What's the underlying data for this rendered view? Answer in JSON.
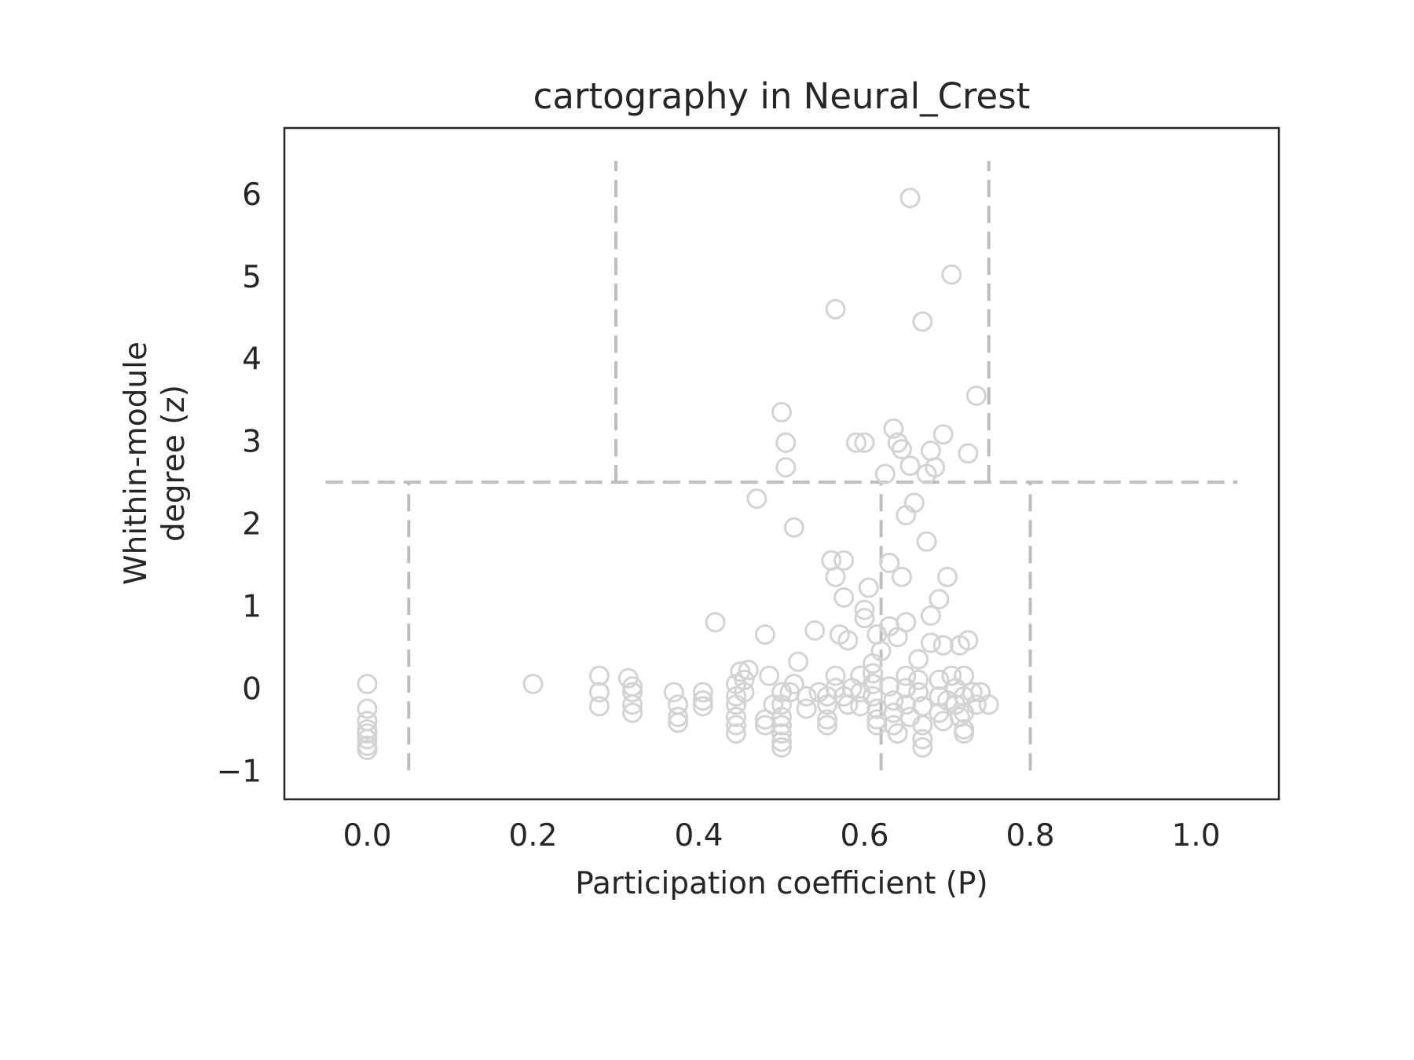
{
  "chart_data": {
    "type": "scatter",
    "title": "cartography in Neural_Crest",
    "xlabel": "Participation coefficient (P)",
    "ylabel_lines": [
      "Whithin-module",
      "degree (z)"
    ],
    "xlim": [
      -0.1,
      1.1
    ],
    "ylim": [
      -1.35,
      6.8
    ],
    "x_ticks": [
      0.0,
      0.2,
      0.4,
      0.6,
      0.8,
      1.0
    ],
    "x_tick_labels": [
      "0.0",
      "0.2",
      "0.4",
      "0.6",
      "0.8",
      "1.0"
    ],
    "y_ticks": [
      -1,
      0,
      1,
      2,
      3,
      4,
      5,
      6
    ],
    "y_tick_labels": [
      "−1",
      "0",
      "1",
      "2",
      "3",
      "4",
      "5",
      "6"
    ],
    "grid": false,
    "marker": "hollow-circle",
    "marker_color": "#d3d3d3",
    "threshold_line_color": "#bdbdbd",
    "threshold_lines": [
      {
        "orientation": "horizontal",
        "y": 2.5,
        "x_from": -0.05,
        "x_to": 1.05
      },
      {
        "orientation": "vertical",
        "x": 0.3,
        "y_from": 2.5,
        "y_to": 6.4
      },
      {
        "orientation": "vertical",
        "x": 0.75,
        "y_from": 2.5,
        "y_to": 6.4
      },
      {
        "orientation": "vertical",
        "x": 0.05,
        "y_from": -1.0,
        "y_to": 2.5
      },
      {
        "orientation": "vertical",
        "x": 0.62,
        "y_from": -1.0,
        "y_to": 2.5
      },
      {
        "orientation": "vertical",
        "x": 0.8,
        "y_from": -1.0,
        "y_to": 2.5
      }
    ],
    "points": [
      [
        0.0,
        0.05
      ],
      [
        0.0,
        -0.25
      ],
      [
        0.0,
        -0.4
      ],
      [
        0.0,
        -0.5
      ],
      [
        0.0,
        -0.55
      ],
      [
        0.0,
        -0.62
      ],
      [
        0.0,
        -0.7
      ],
      [
        0.0,
        -0.75
      ],
      [
        0.2,
        0.05
      ],
      [
        0.28,
        0.15
      ],
      [
        0.28,
        -0.05
      ],
      [
        0.28,
        -0.22
      ],
      [
        0.315,
        0.12
      ],
      [
        0.32,
        0.02
      ],
      [
        0.32,
        -0.05
      ],
      [
        0.32,
        -0.2
      ],
      [
        0.32,
        -0.3
      ],
      [
        0.37,
        -0.05
      ],
      [
        0.375,
        -0.2
      ],
      [
        0.375,
        -0.35
      ],
      [
        0.375,
        -0.42
      ],
      [
        0.405,
        -0.05
      ],
      [
        0.405,
        -0.15
      ],
      [
        0.405,
        -0.22
      ],
      [
        0.42,
        0.8
      ],
      [
        0.445,
        0.05
      ],
      [
        0.445,
        -0.1
      ],
      [
        0.445,
        -0.2
      ],
      [
        0.445,
        -0.35
      ],
      [
        0.445,
        -0.45
      ],
      [
        0.445,
        -0.55
      ],
      [
        0.45,
        0.2
      ],
      [
        0.455,
        0.1
      ],
      [
        0.455,
        -0.05
      ],
      [
        0.46,
        0.22
      ],
      [
        0.47,
        2.3
      ],
      [
        0.48,
        0.65
      ],
      [
        0.48,
        -0.38
      ],
      [
        0.48,
        -0.45
      ],
      [
        0.485,
        0.15
      ],
      [
        0.49,
        -0.2
      ],
      [
        0.5,
        3.35
      ],
      [
        0.505,
        2.98
      ],
      [
        0.505,
        2.68
      ],
      [
        0.5,
        -0.05
      ],
      [
        0.5,
        -0.2
      ],
      [
        0.5,
        -0.35
      ],
      [
        0.5,
        -0.45
      ],
      [
        0.5,
        -0.55
      ],
      [
        0.5,
        -0.65
      ],
      [
        0.5,
        -0.72
      ],
      [
        0.51,
        -0.05
      ],
      [
        0.515,
        1.95
      ],
      [
        0.515,
        0.05
      ],
      [
        0.52,
        0.32
      ],
      [
        0.53,
        -0.1
      ],
      [
        0.53,
        -0.25
      ],
      [
        0.54,
        0.7
      ],
      [
        0.545,
        -0.05
      ],
      [
        0.555,
        -0.1
      ],
      [
        0.555,
        -0.2
      ],
      [
        0.555,
        -0.38
      ],
      [
        0.555,
        -0.45
      ],
      [
        0.56,
        1.55
      ],
      [
        0.565,
        1.35
      ],
      [
        0.565,
        4.6
      ],
      [
        0.565,
        0.15
      ],
      [
        0.565,
        0.0
      ],
      [
        0.57,
        0.65
      ],
      [
        0.575,
        1.1
      ],
      [
        0.575,
        1.55
      ],
      [
        0.575,
        -0.1
      ],
      [
        0.58,
        -0.2
      ],
      [
        0.58,
        0.58
      ],
      [
        0.585,
        0.0
      ],
      [
        0.59,
        2.98
      ],
      [
        0.595,
        0.15
      ],
      [
        0.595,
        -0.05
      ],
      [
        0.595,
        -0.22
      ],
      [
        0.6,
        2.98
      ],
      [
        0.6,
        0.95
      ],
      [
        0.6,
        0.85
      ],
      [
        0.605,
        1.22
      ],
      [
        0.61,
        0.3
      ],
      [
        0.61,
        0.18
      ],
      [
        0.61,
        0.05
      ],
      [
        0.61,
        -0.1
      ],
      [
        0.615,
        -0.25
      ],
      [
        0.615,
        -0.38
      ],
      [
        0.615,
        -0.45
      ],
      [
        0.615,
        0.65
      ],
      [
        0.62,
        0.45
      ],
      [
        0.625,
        2.6
      ],
      [
        0.63,
        1.52
      ],
      [
        0.63,
        0.75
      ],
      [
        0.63,
        0.02
      ],
      [
        0.635,
        -0.15
      ],
      [
        0.635,
        -0.3
      ],
      [
        0.635,
        -0.45
      ],
      [
        0.64,
        -0.55
      ],
      [
        0.635,
        3.15
      ],
      [
        0.64,
        2.98
      ],
      [
        0.64,
        0.62
      ],
      [
        0.645,
        2.9
      ],
      [
        0.645,
        1.35
      ],
      [
        0.65,
        2.1
      ],
      [
        0.65,
        0.8
      ],
      [
        0.65,
        0.15
      ],
      [
        0.65,
        0.0
      ],
      [
        0.65,
        -0.2
      ],
      [
        0.655,
        -0.35
      ],
      [
        0.655,
        5.95
      ],
      [
        0.655,
        2.7
      ],
      [
        0.66,
        2.25
      ],
      [
        0.665,
        0.35
      ],
      [
        0.665,
        0.1
      ],
      [
        0.665,
        -0.05
      ],
      [
        0.67,
        -0.22
      ],
      [
        0.67,
        -0.45
      ],
      [
        0.67,
        -0.62
      ],
      [
        0.67,
        -0.72
      ],
      [
        0.67,
        4.45
      ],
      [
        0.675,
        2.6
      ],
      [
        0.675,
        1.78
      ],
      [
        0.68,
        2.88
      ],
      [
        0.68,
        0.88
      ],
      [
        0.68,
        0.55
      ],
      [
        0.685,
        2.68
      ],
      [
        0.69,
        1.08
      ],
      [
        0.69,
        0.1
      ],
      [
        0.69,
        -0.1
      ],
      [
        0.69,
        -0.3
      ],
      [
        0.695,
        3.08
      ],
      [
        0.695,
        0.52
      ],
      [
        0.695,
        -0.4
      ],
      [
        0.7,
        1.35
      ],
      [
        0.7,
        -0.15
      ],
      [
        0.705,
        5.02
      ],
      [
        0.705,
        0.15
      ],
      [
        0.71,
        0.0
      ],
      [
        0.71,
        -0.2
      ],
      [
        0.715,
        -0.35
      ],
      [
        0.715,
        0.52
      ],
      [
        0.72,
        0.15
      ],
      [
        0.72,
        -0.1
      ],
      [
        0.72,
        -0.3
      ],
      [
        0.72,
        -0.5
      ],
      [
        0.72,
        -0.55
      ],
      [
        0.725,
        2.85
      ],
      [
        0.725,
        0.58
      ],
      [
        0.73,
        -0.05
      ],
      [
        0.735,
        3.55
      ],
      [
        0.735,
        -0.2
      ],
      [
        0.74,
        -0.05
      ],
      [
        0.75,
        -0.2
      ]
    ]
  }
}
